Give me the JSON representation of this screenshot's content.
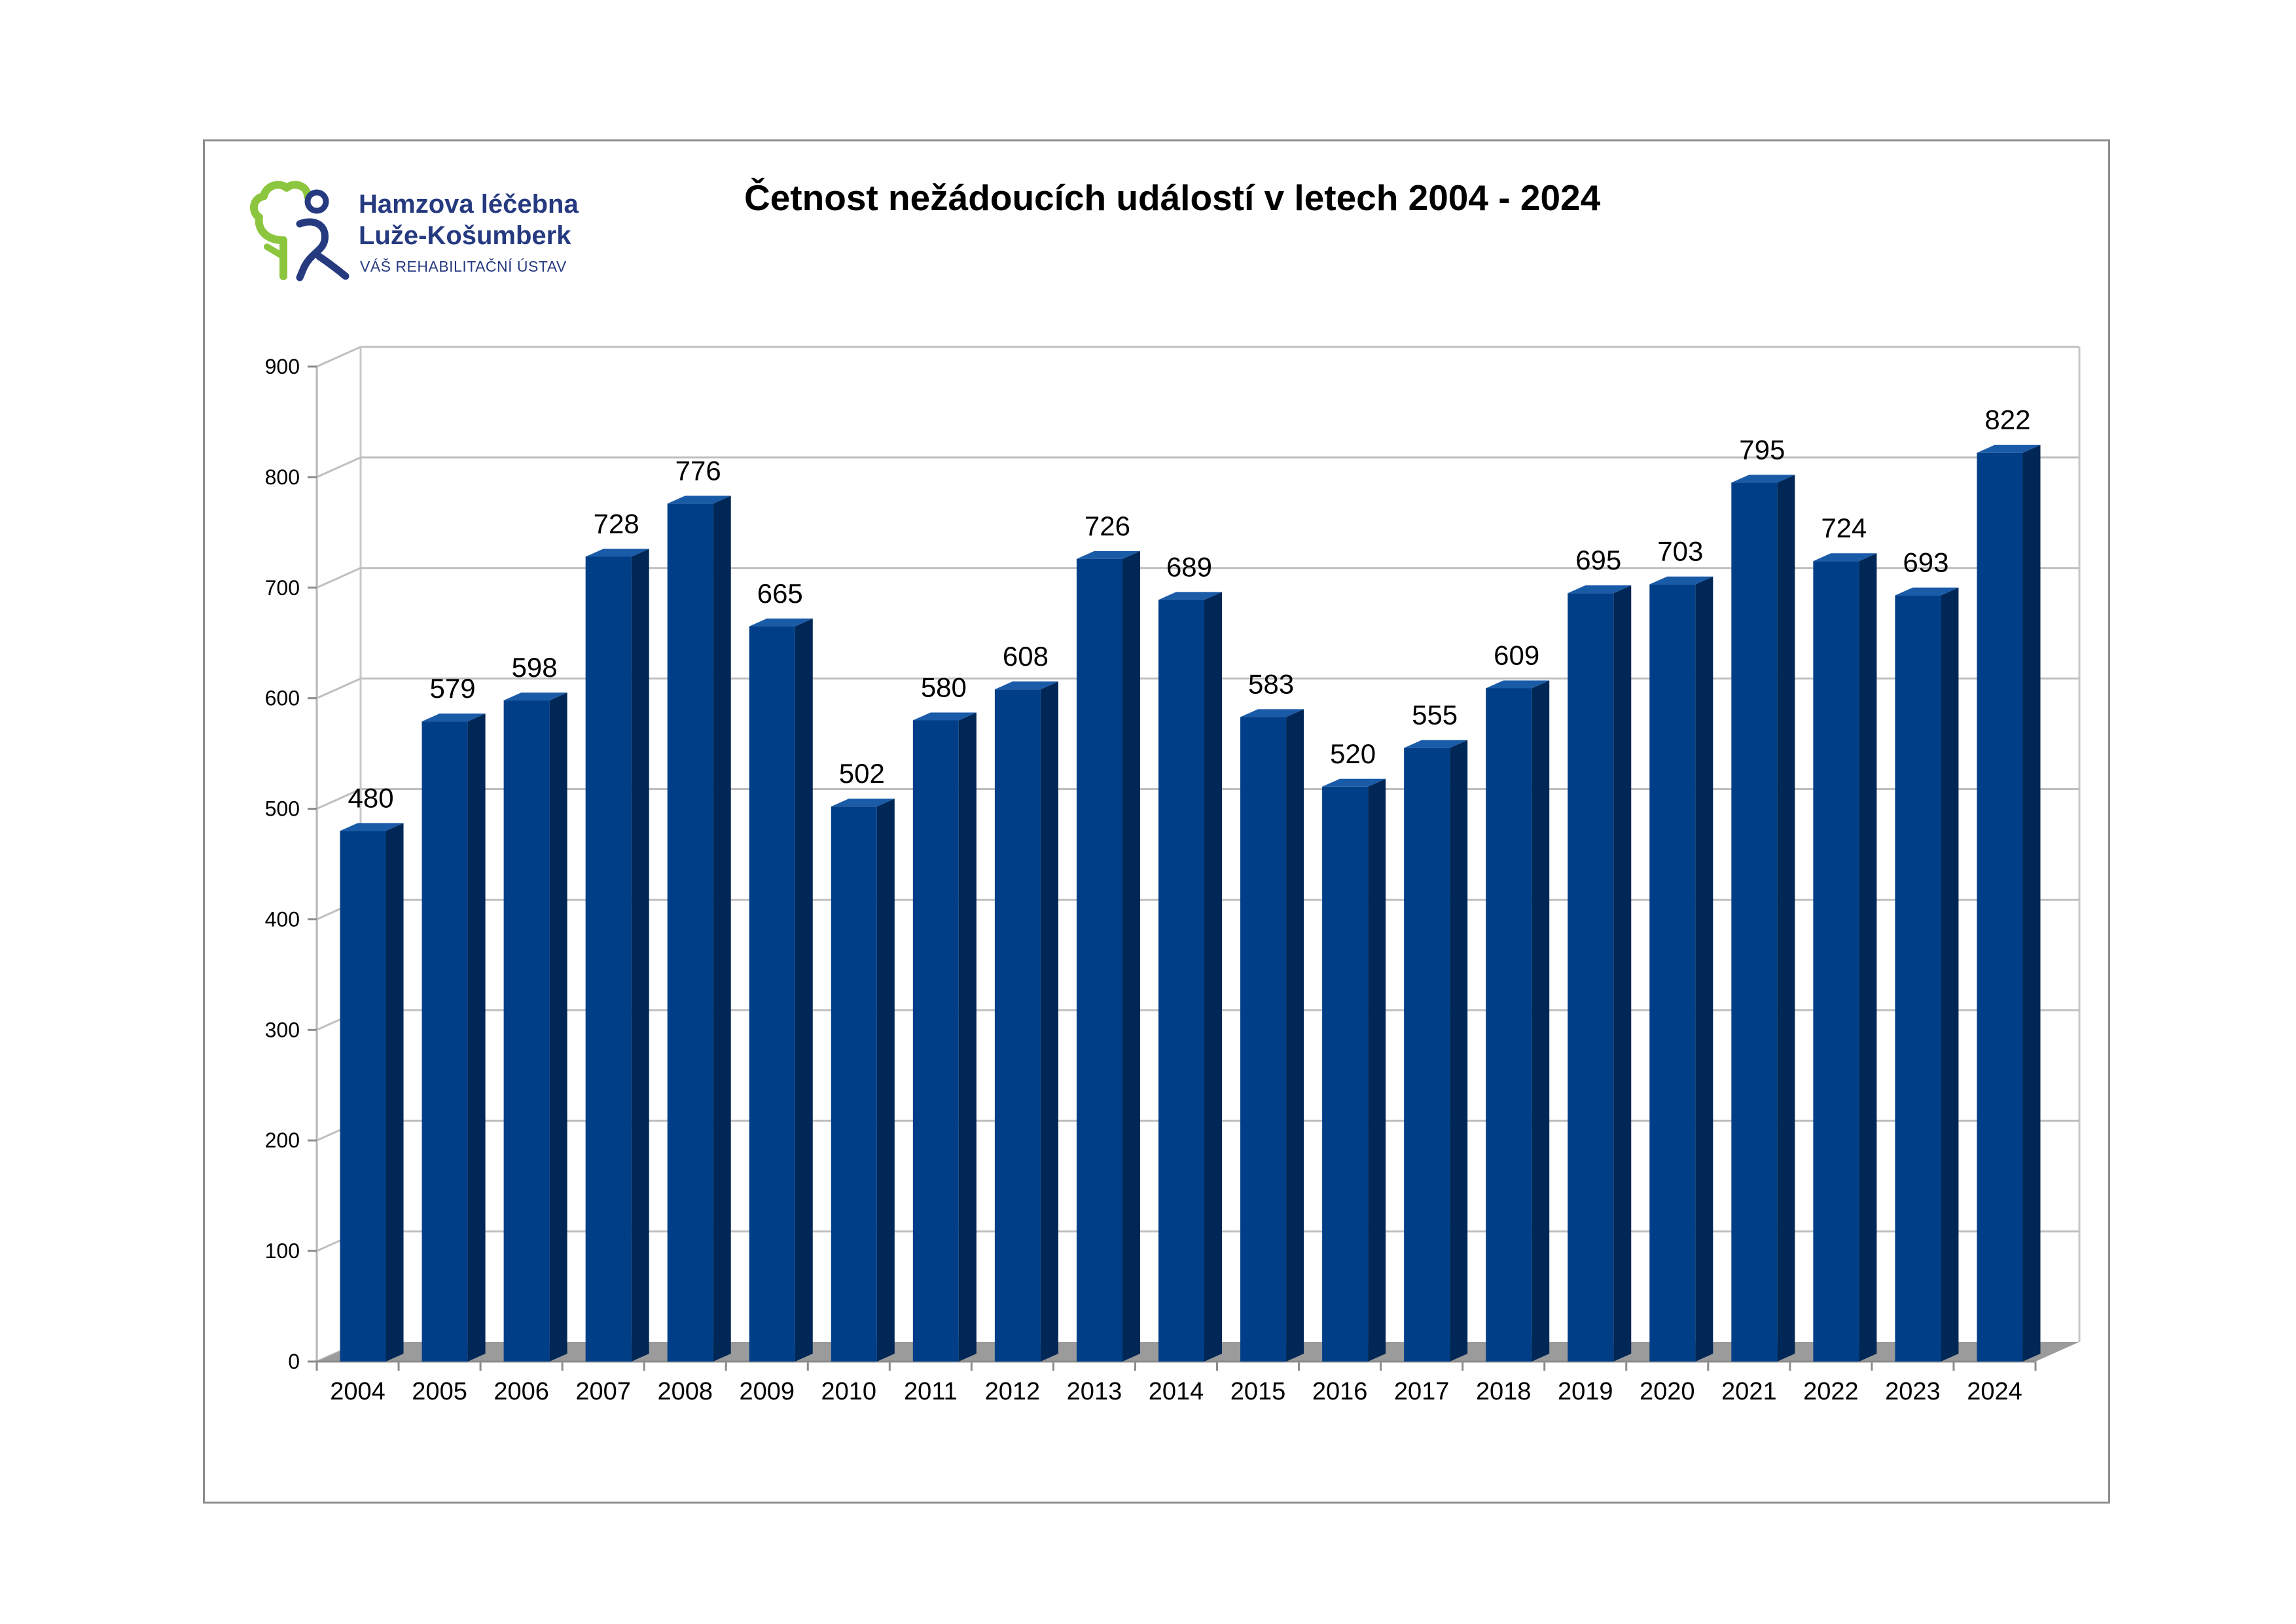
{
  "logo": {
    "name_line1": "Hamzova léčebna",
    "name_line2": "Luže-Košumberk",
    "tagline": "VÁŠ REHABILITAČNÍ ÚSTAV",
    "colors": {
      "green": "#8cc63f",
      "navy": "#263a80"
    }
  },
  "chart_data": {
    "type": "bar",
    "title": "Četnost nežádoucích událostí v letech 2004 - 2024",
    "xlabel": "",
    "ylabel": "",
    "categories": [
      "2004",
      "2005",
      "2006",
      "2007",
      "2008",
      "2009",
      "2010",
      "2011",
      "2012",
      "2013",
      "2014",
      "2015",
      "2016",
      "2017",
      "2018",
      "2019",
      "2020",
      "2021",
      "2022",
      "2023",
      "2024"
    ],
    "values": [
      480,
      579,
      598,
      728,
      776,
      665,
      502,
      580,
      608,
      726,
      689,
      583,
      520,
      555,
      609,
      695,
      703,
      795,
      724,
      693,
      822
    ],
    "ylim": [
      0,
      900
    ],
    "yticks": [
      "0",
      "100",
      "200",
      "300",
      "400",
      "500",
      "600",
      "700",
      "800",
      "900"
    ],
    "grid": true,
    "legend": "none",
    "style": "3d-column",
    "colors": {
      "bar_front": "#003f87",
      "bar_side": "#002756",
      "bar_top": "#1a5ba8",
      "floor": "#9b9b9b",
      "grid": "#bfbfbf"
    }
  }
}
